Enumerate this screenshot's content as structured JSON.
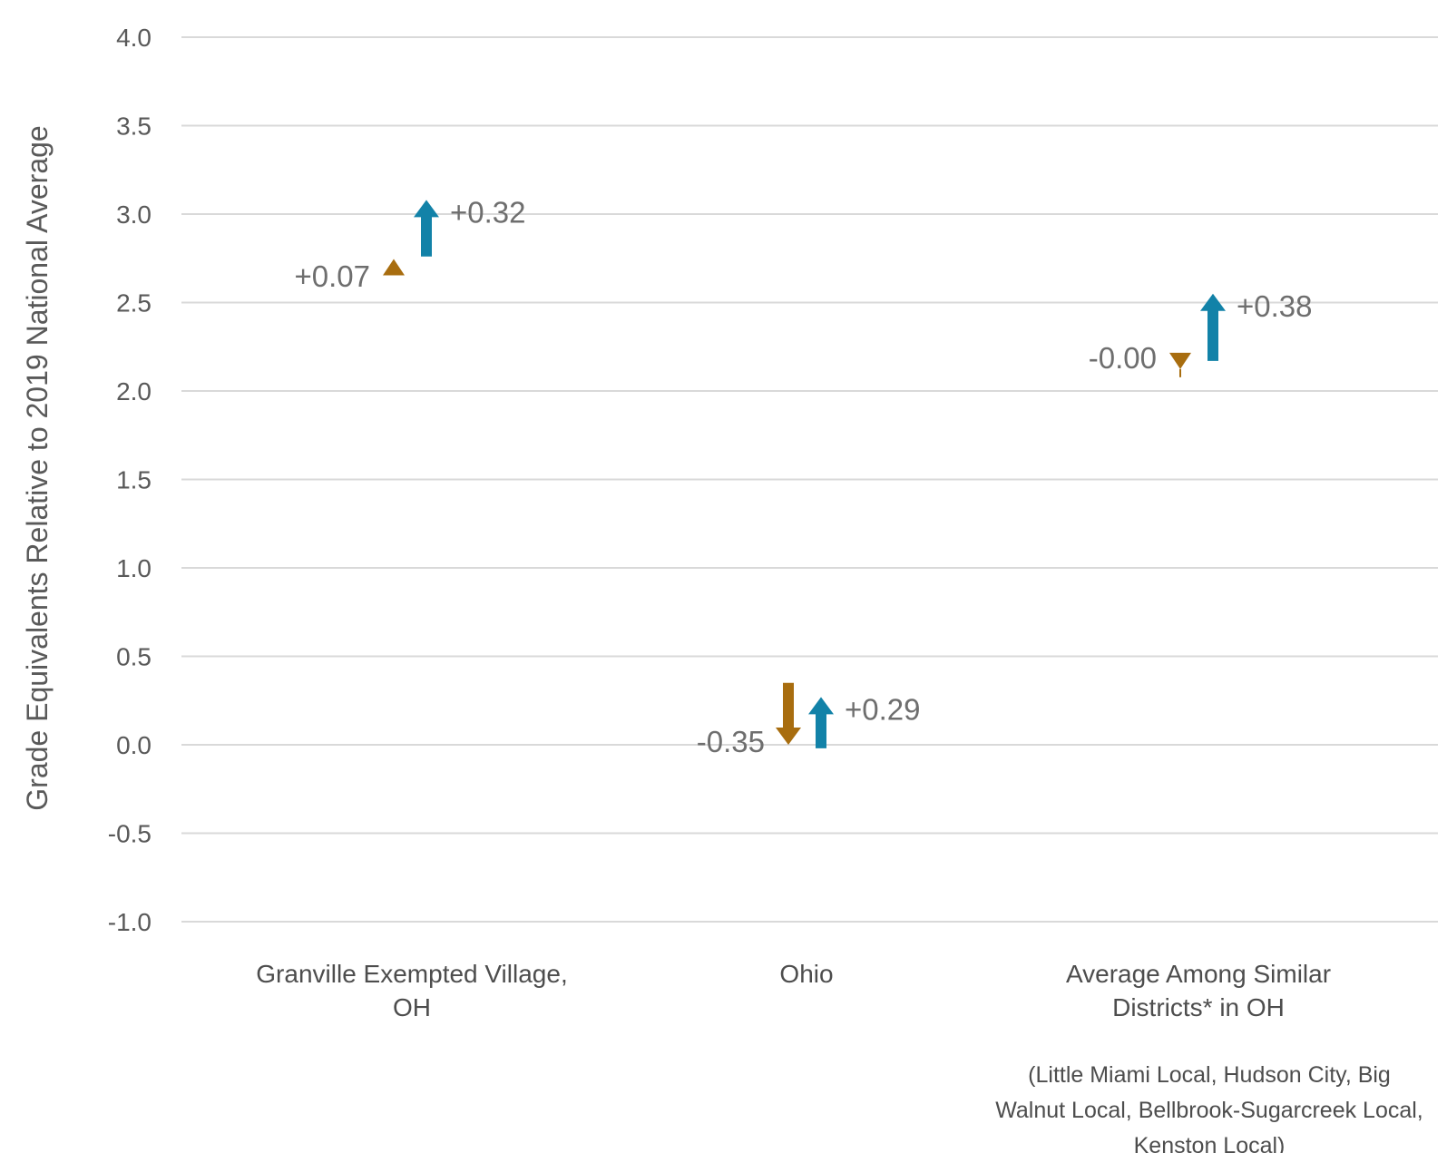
{
  "chart_data": {
    "type": "arrow",
    "ylabel": "Grade Equivalents Relative to 2019 National Average",
    "ylim": [
      -1.0,
      4.0
    ],
    "yticks": [
      "4.0",
      "3.5",
      "3.0",
      "2.5",
      "2.0",
      "1.5",
      "1.0",
      "0.5",
      "0.0",
      "-0.5",
      "-1.0"
    ],
    "ytick_values": [
      4.0,
      3.5,
      3.0,
      2.5,
      2.0,
      1.5,
      1.0,
      0.5,
      0.0,
      -0.5,
      -1.0
    ],
    "grid": true,
    "categories": [
      [
        "Granville Exempted Village,",
        "OH"
      ],
      [
        "Ohio"
      ],
      [
        "Average Among Similar",
        "Districts* in OH"
      ]
    ],
    "footnote": [
      "(Little Miami Local, Hudson City, Big",
      "Walnut Local, Bellbrook-Sugarcreek Local,",
      "Kenston Local)"
    ],
    "series": [
      {
        "color": "#a86d0f",
        "points": [
          {
            "start": 2.63,
            "end": 2.7,
            "label": "+0.07"
          },
          {
            "start": 0.35,
            "end": 0.0,
            "label": "-0.35"
          },
          {
            "start": 2.17,
            "end": 2.17,
            "label": "-0.00"
          }
        ]
      },
      {
        "color": "#1282a8",
        "points": [
          {
            "start": 2.76,
            "end": 3.08,
            "label": "+0.32"
          },
          {
            "start": -0.02,
            "end": 0.27,
            "label": "+0.29"
          },
          {
            "start": 2.17,
            "end": 2.55,
            "label": "+0.38"
          }
        ]
      }
    ]
  }
}
